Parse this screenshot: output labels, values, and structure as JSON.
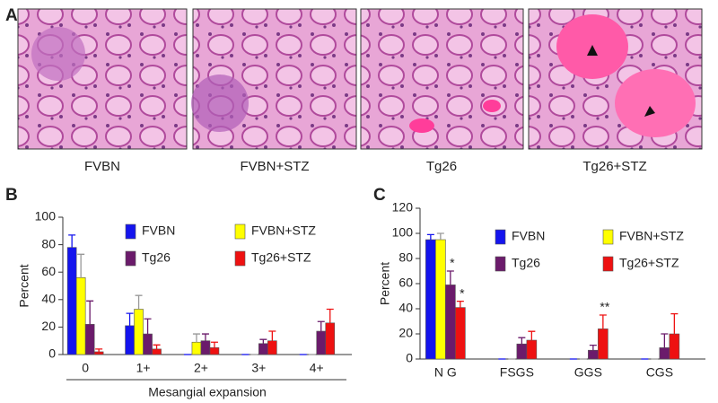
{
  "figure": {
    "panel_labels": [
      "A",
      "B",
      "C"
    ],
    "image_captions": [
      "FVBN",
      "FVBN+STZ",
      "Tg26",
      "Tg26+STZ"
    ]
  },
  "chart_data": [
    {
      "type": "bar",
      "y_label": "Percent",
      "x_label": "Mesangial expansion",
      "categories": [
        "0",
        "1+",
        "2+",
        "3+",
        "4+"
      ],
      "series": [
        {
          "name": "FVBN",
          "color": "#1414ee",
          "values": [
            78,
            21,
            0,
            0,
            0
          ],
          "errors": [
            9,
            9,
            0,
            0,
            0
          ]
        },
        {
          "name": "FVBN+STZ",
          "color": "#ffff00",
          "values": [
            56,
            33,
            9,
            0,
            0
          ],
          "errors": [
            17,
            10,
            6,
            0,
            0
          ]
        },
        {
          "name": "Tg26",
          "color": "#6b1b6b",
          "values": [
            22,
            15,
            10,
            8,
            17
          ],
          "errors": [
            17,
            11,
            5,
            3,
            7
          ]
        },
        {
          "name": "Tg26+STZ",
          "color": "#ee1111",
          "values": [
            2,
            4,
            5,
            10,
            23
          ],
          "errors": [
            2,
            3,
            4,
            7,
            10
          ]
        }
      ],
      "ylim": [
        0,
        100
      ],
      "yticks": [
        0,
        20,
        40,
        60,
        80,
        100
      ],
      "legend": "upper right"
    },
    {
      "type": "bar",
      "y_label": "Percent",
      "categories": [
        "N G",
        "FSGS",
        "GGS",
        "CGS"
      ],
      "series": [
        {
          "name": "FVBN",
          "color": "#1414ee",
          "values": [
            95,
            0,
            0,
            0
          ],
          "errors": [
            4,
            0,
            0,
            0
          ]
        },
        {
          "name": "FVBN+STZ",
          "color": "#ffff00",
          "values": [
            95,
            0,
            0,
            0
          ],
          "errors": [
            5,
            0,
            0,
            0
          ]
        },
        {
          "name": "Tg26",
          "color": "#6b1b6b",
          "values": [
            59,
            12,
            7,
            9
          ],
          "errors": [
            11,
            5,
            4,
            11
          ],
          "value_annotations": [
            "*",
            null,
            null,
            null
          ]
        },
        {
          "name": "Tg26+STZ",
          "color": "#ee1111",
          "values": [
            41,
            15,
            24,
            20
          ],
          "errors": [
            5,
            7,
            11,
            16
          ],
          "value_annotations": [
            "*",
            null,
            "**",
            null
          ]
        }
      ],
      "ylim": [
        0,
        120
      ],
      "yticks": [
        0,
        20,
        40,
        60,
        80,
        100,
        120
      ],
      "legend": "upper right"
    }
  ]
}
